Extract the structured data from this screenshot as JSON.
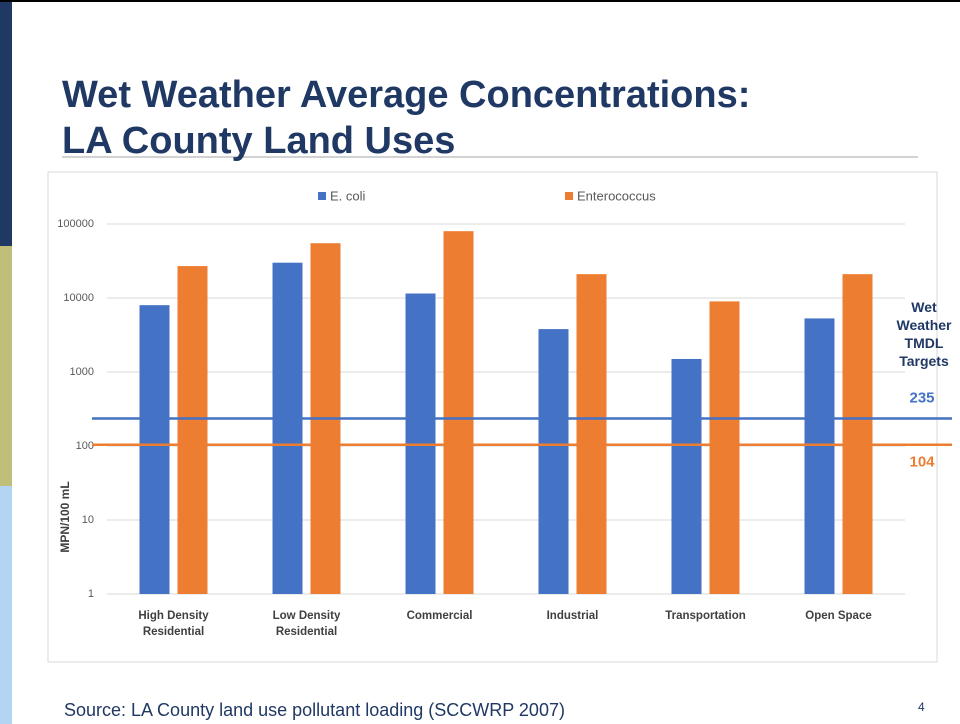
{
  "slide": {
    "title_lines": [
      "Wet Weather Average Concentrations:",
      "LA County Land Uses"
    ],
    "source": "Source: LA County land use pollutant loading (SCCWRP 2007)",
    "page_number": "4"
  },
  "chart_data": {
    "type": "bar",
    "log_y": true,
    "grid": true,
    "legend": "top",
    "ylabel": "MPN/100 mL",
    "categories": [
      "High Density Residential",
      "Low Density Residential",
      "Commercial",
      "Industrial",
      "Transportation",
      "Open Space"
    ],
    "series": [
      {
        "name": "E. coli",
        "color": "#4472c4",
        "values": [
          8000,
          30000,
          11500,
          3800,
          1500,
          5300
        ]
      },
      {
        "name": "Enterococcus",
        "color": "#ed7d31",
        "values": [
          27000,
          55000,
          80000,
          21000,
          9000,
          21000
        ]
      }
    ],
    "ylim": [
      1,
      100000
    ],
    "yticks": [
      1,
      10,
      100,
      1000,
      10000,
      100000
    ],
    "annotation": "Wet Weather TMDL Targets",
    "reference_lines": [
      {
        "value": 235,
        "color": "#4472c4"
      },
      {
        "value": 104,
        "color": "#ed7d31"
      }
    ]
  }
}
